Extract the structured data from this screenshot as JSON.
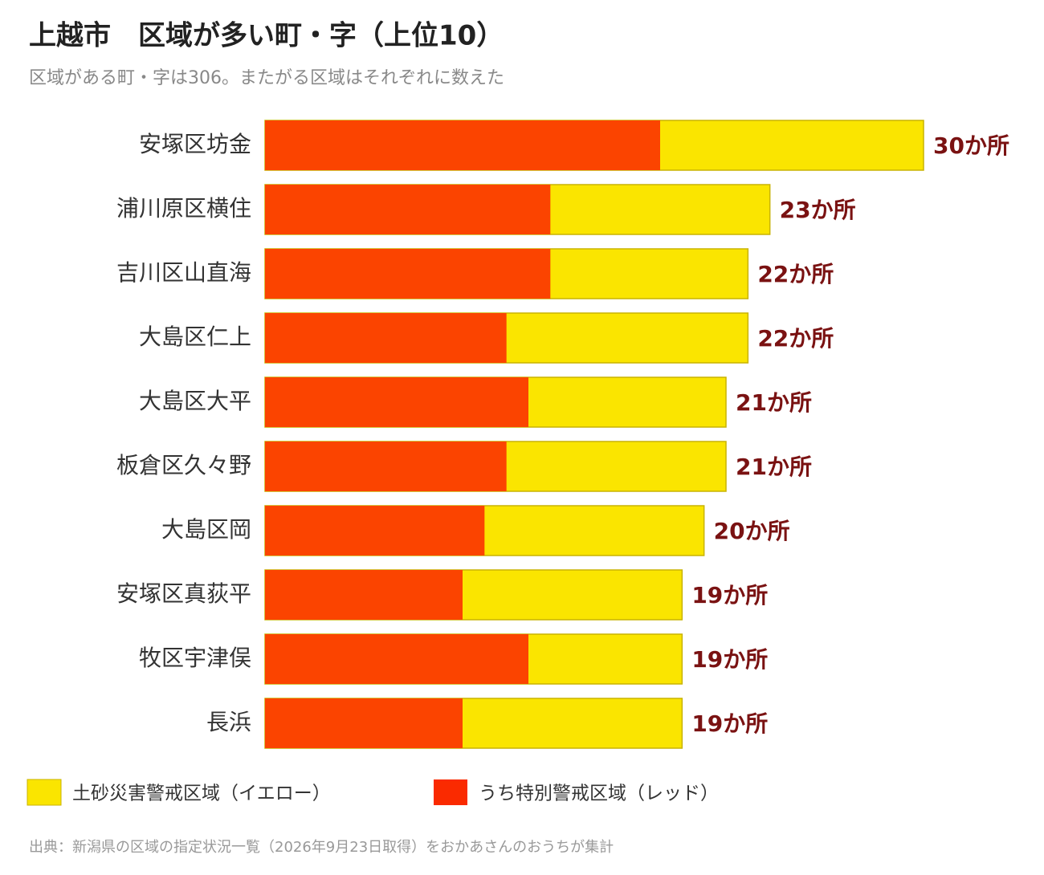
{
  "chart_data": {
    "type": "bar",
    "orientation": "horizontal",
    "title": "上越市　区域が多い町・字（上位10）",
    "subtitle": "区域がある町・字は306。またがる区域はそれぞれに数えた",
    "categories": [
      "安塚区坊金",
      "浦川原区横住",
      "吉川区山直海",
      "大島区仁上",
      "大島区大平",
      "板倉区久々野",
      "大島区岡",
      "安塚区真荻平",
      "牧区宇津俣",
      "長浜"
    ],
    "series": [
      {
        "name": "土砂災害警戒区域（イエロー）",
        "color": "#fae500",
        "values": [
          30,
          23,
          22,
          22,
          21,
          21,
          20,
          19,
          19,
          19
        ],
        "value_labels": [
          "30か所",
          "23か所",
          "22か所",
          "22か所",
          "21か所",
          "21か所",
          "20か所",
          "19か所",
          "19か所",
          "19か所"
        ]
      },
      {
        "name": "うち特別警戒区域（レッド）",
        "color": "#fb4400",
        "values": [
          18,
          13,
          13,
          11,
          12,
          11,
          10,
          9,
          12,
          9
        ]
      }
    ],
    "xlim": [
      0,
      30
    ],
    "legend": "bottom-left",
    "source": "出典：新潟県の区域の指定状況一覧（2026年9月23日取得）をおかあさんのおうちが集計"
  }
}
